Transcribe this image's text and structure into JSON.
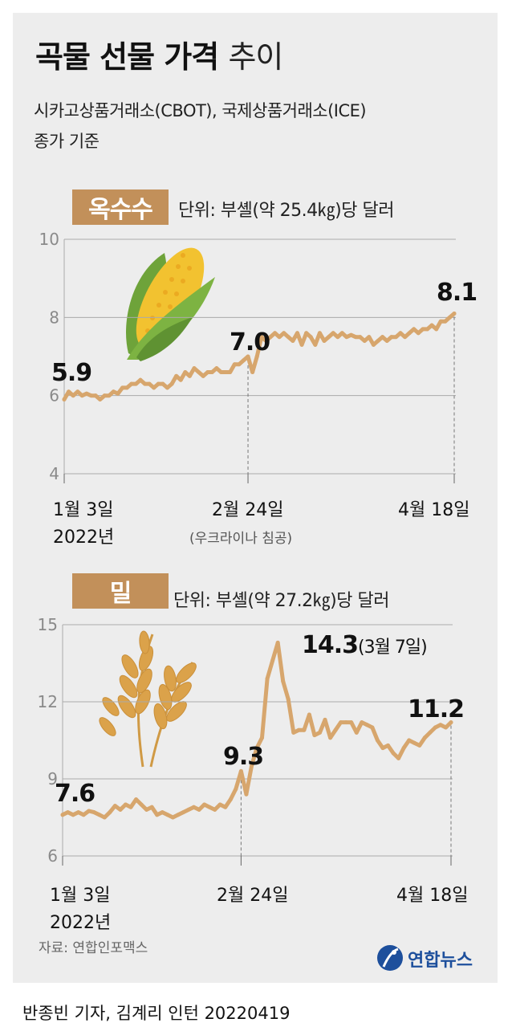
{
  "title": {
    "bold": "곡물 선물 가격",
    "light": "추이"
  },
  "subtitle": {
    "line1": "시카고상품거래소(CBOT), 국제상품거래소(ICE)",
    "line2": "종가 기준"
  },
  "colors": {
    "line": "#d7a66d",
    "badge": "#c2905a",
    "grid": "#aaaaaa",
    "background": "#ededed"
  },
  "icons": {
    "corn": "corn-icon",
    "wheat": "wheat-icon",
    "logo": "yonhap-logo-icon"
  },
  "chart_data": [
    {
      "type": "line",
      "badge": "옥수수",
      "unit": "단위: 부셸(약 25.4㎏)당 달러",
      "ylim": [
        4,
        10
      ],
      "yticks": [
        "10",
        "8",
        "6",
        "4"
      ],
      "grid": true,
      "x_labels": [
        {
          "line1": "1월 3일",
          "line2": "2022년"
        },
        {
          "line1": "2월 24일",
          "line2": "(우크라이나 침공)"
        },
        {
          "line1": "4월 18일",
          "line2": ""
        }
      ],
      "annotations": [
        {
          "text": "5.9"
        },
        {
          "text": "7.0"
        },
        {
          "text": "8.1"
        }
      ],
      "series": [
        {
          "values": [
            5.9,
            6.1,
            6.0,
            6.1,
            6.0,
            6.05,
            6.0,
            6.0,
            5.9,
            6.0,
            6.0,
            6.1,
            6.05,
            6.2,
            6.2,
            6.3,
            6.3,
            6.4,
            6.3,
            6.3,
            6.2,
            6.3,
            6.3,
            6.2,
            6.3,
            6.5,
            6.4,
            6.6,
            6.5,
            6.7,
            6.6,
            6.5,
            6.6,
            6.6,
            6.7,
            6.6,
            6.6,
            6.6,
            6.8,
            6.8,
            6.9,
            7.0,
            6.6,
            7.0,
            7.5,
            7.4,
            7.5,
            7.6,
            7.5,
            7.6,
            7.5,
            7.4,
            7.6,
            7.3,
            7.6,
            7.5,
            7.3,
            7.6,
            7.4,
            7.5,
            7.6,
            7.5,
            7.6,
            7.5,
            7.55,
            7.5,
            7.5,
            7.4,
            7.5,
            7.3,
            7.4,
            7.5,
            7.4,
            7.5,
            7.5,
            7.6,
            7.5,
            7.6,
            7.7,
            7.6,
            7.7,
            7.7,
            7.8,
            7.7,
            7.9,
            7.9,
            8.0,
            8.1
          ]
        }
      ]
    },
    {
      "type": "line",
      "badge": "밀",
      "unit": "단위: 부셸(약 27.2㎏)당 달러",
      "ylim": [
        6,
        15
      ],
      "yticks": [
        "15",
        "12",
        "9",
        "6"
      ],
      "grid": true,
      "x_labels": [
        {
          "line1": "1월 3일",
          "line2": "2022년"
        },
        {
          "line1": "2월 24일",
          "line2": ""
        },
        {
          "line1": "4월 18일",
          "line2": ""
        }
      ],
      "annotations": [
        {
          "text": "7.6"
        },
        {
          "text": "9.3"
        },
        {
          "text": "14.3",
          "suffix": "(3월 7일)"
        },
        {
          "text": "11.2"
        }
      ],
      "series": [
        {
          "values": [
            7.6,
            7.7,
            7.6,
            7.7,
            7.6,
            7.75,
            7.7,
            7.6,
            7.5,
            7.7,
            7.95,
            7.8,
            8.0,
            7.9,
            8.2,
            8.0,
            7.8,
            7.9,
            7.6,
            7.7,
            7.6,
            7.5,
            7.6,
            7.7,
            7.8,
            7.9,
            7.8,
            8.0,
            7.9,
            7.8,
            8.0,
            7.9,
            8.2,
            8.6,
            9.3,
            8.4,
            9.5,
            10.2,
            10.6,
            12.9,
            13.6,
            14.3,
            12.8,
            12.1,
            10.8,
            10.9,
            10.9,
            11.5,
            10.7,
            10.8,
            11.3,
            10.6,
            10.9,
            11.2,
            11.2,
            11.2,
            10.8,
            11.2,
            11.1,
            11.0,
            10.5,
            10.2,
            10.3,
            10.0,
            9.8,
            10.2,
            10.5,
            10.4,
            10.3,
            10.6,
            10.8,
            11.0,
            11.1,
            11.0,
            11.2
          ]
        }
      ]
    }
  ],
  "source": "자료: 연합인포맥스",
  "logo": "연합뉴스",
  "credit": "반종빈 기자, 김계리 인턴  20220419"
}
